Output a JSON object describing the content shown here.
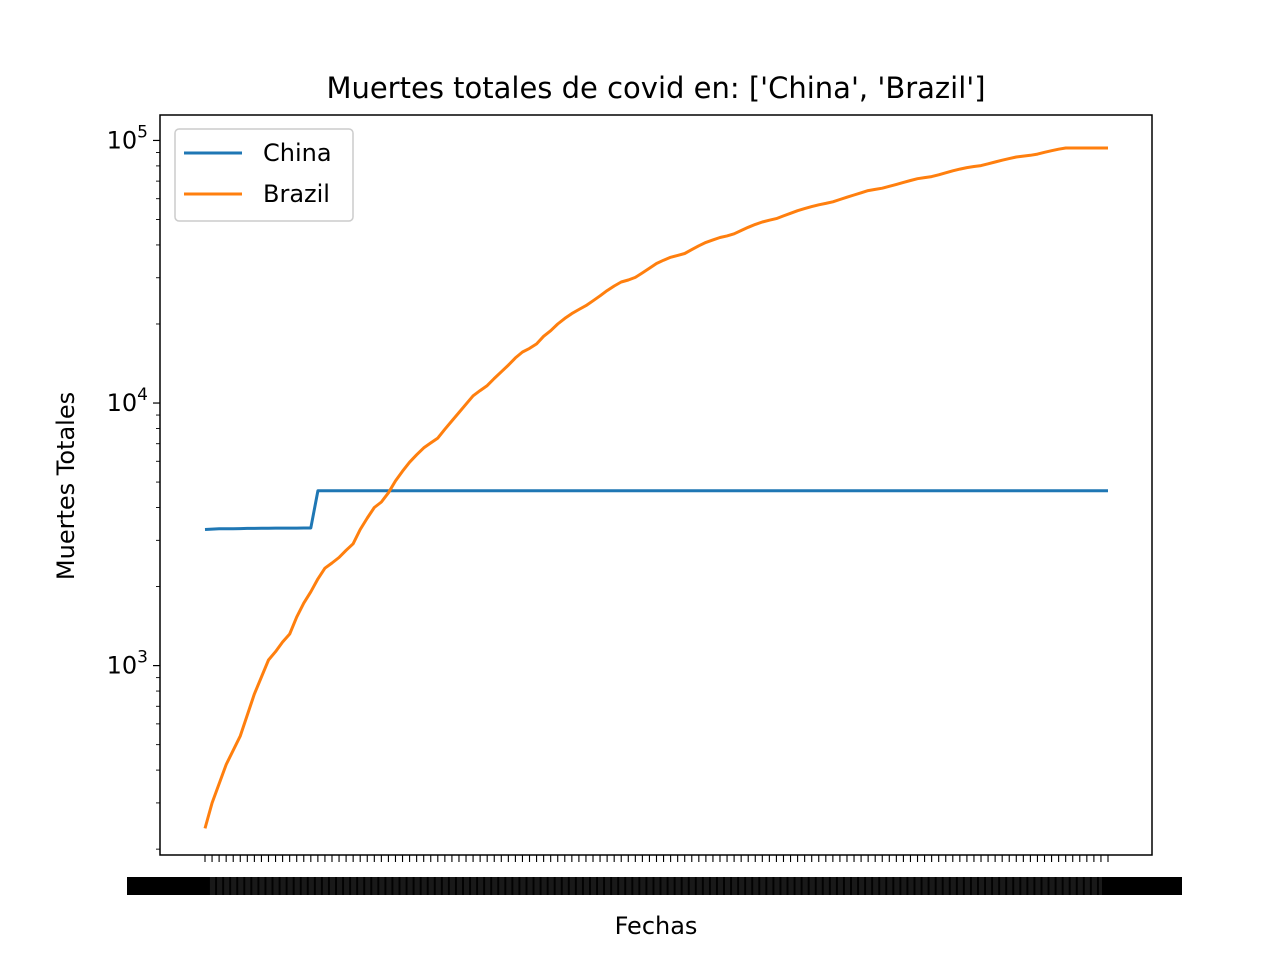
{
  "chart_data": {
    "type": "line",
    "title": "Muertes totales de covid en: ['China', 'Brazil']",
    "xlabel": "Fechas",
    "ylabel": "Muertes Totales",
    "yscale": "log",
    "ylim": [
      190,
      125000
    ],
    "yticks": [
      {
        "value": 1000,
        "base": "10",
        "exp": "3"
      },
      {
        "value": 10000,
        "base": "10",
        "exp": "4"
      },
      {
        "value": 100000,
        "base": "10",
        "exp": "5"
      }
    ],
    "x_tick_count": 128,
    "x_tick_labels_note": "overlapping date labels, unreadable",
    "legend": "top-left",
    "grid": false,
    "series": [
      {
        "name": "China",
        "color": "#1f77b4",
        "points": [
          [
            0,
            3300
          ],
          [
            1,
            3310
          ],
          [
            2,
            3320
          ],
          [
            3,
            3320
          ],
          [
            4,
            3320
          ],
          [
            5,
            3325
          ],
          [
            6,
            3330
          ],
          [
            7,
            3330
          ],
          [
            8,
            3335
          ],
          [
            9,
            3335
          ],
          [
            10,
            3340
          ],
          [
            11,
            3340
          ],
          [
            12,
            3340
          ],
          [
            13,
            3340
          ],
          [
            14,
            3342
          ],
          [
            15,
            3342
          ],
          [
            16,
            4632
          ],
          [
            128,
            4634
          ]
        ]
      },
      {
        "name": "Brazil",
        "color": "#ff7f0e",
        "points": [
          [
            0,
            240
          ],
          [
            1,
            300
          ],
          [
            3,
            420
          ],
          [
            5,
            540
          ],
          [
            7,
            780
          ],
          [
            9,
            1050
          ],
          [
            10,
            1130
          ],
          [
            11,
            1230
          ],
          [
            12,
            1320
          ],
          [
            13,
            1530
          ],
          [
            14,
            1730
          ],
          [
            15,
            1910
          ],
          [
            16,
            2140
          ],
          [
            17,
            2350
          ],
          [
            18,
            2460
          ],
          [
            19,
            2580
          ],
          [
            20,
            2750
          ],
          [
            21,
            2910
          ],
          [
            22,
            3300
          ],
          [
            23,
            3650
          ],
          [
            24,
            4000
          ],
          [
            25,
            4200
          ],
          [
            26,
            4550
          ],
          [
            27,
            5050
          ],
          [
            28,
            5500
          ],
          [
            29,
            5950
          ],
          [
            30,
            6350
          ],
          [
            31,
            6750
          ],
          [
            32,
            7050
          ],
          [
            33,
            7350
          ],
          [
            34,
            7950
          ],
          [
            35,
            8550
          ],
          [
            36,
            9200
          ],
          [
            37,
            9900
          ],
          [
            38,
            10650
          ],
          [
            39,
            11150
          ],
          [
            40,
            11650
          ],
          [
            41,
            12400
          ],
          [
            42,
            13150
          ],
          [
            43,
            13950
          ],
          [
            44,
            14850
          ],
          [
            45,
            15650
          ],
          [
            46,
            16150
          ],
          [
            47,
            16800
          ],
          [
            48,
            17950
          ],
          [
            49,
            18850
          ],
          [
            50,
            20000
          ],
          [
            51,
            21000
          ],
          [
            52,
            21900
          ],
          [
            53,
            22700
          ],
          [
            54,
            23500
          ],
          [
            55,
            24500
          ],
          [
            56,
            25600
          ],
          [
            57,
            26800
          ],
          [
            58,
            27900
          ],
          [
            59,
            28900
          ],
          [
            60,
            29400
          ],
          [
            61,
            30100
          ],
          [
            62,
            31300
          ],
          [
            63,
            32600
          ],
          [
            64,
            34000
          ],
          [
            65,
            35000
          ],
          [
            66,
            35900
          ],
          [
            67,
            36500
          ],
          [
            68,
            37100
          ],
          [
            69,
            38400
          ],
          [
            70,
            39700
          ],
          [
            71,
            40900
          ],
          [
            72,
            41800
          ],
          [
            73,
            42700
          ],
          [
            74,
            43300
          ],
          [
            75,
            44100
          ],
          [
            76,
            45400
          ],
          [
            77,
            46700
          ],
          [
            78,
            47900
          ],
          [
            79,
            48900
          ],
          [
            80,
            49700
          ],
          [
            81,
            50400
          ],
          [
            82,
            51600
          ],
          [
            83,
            52800
          ],
          [
            84,
            54000
          ],
          [
            85,
            55000
          ],
          [
            86,
            56000
          ],
          [
            87,
            56900
          ],
          [
            88,
            57600
          ],
          [
            89,
            58400
          ],
          [
            90,
            59600
          ],
          [
            91,
            60800
          ],
          [
            92,
            62000
          ],
          [
            93,
            63200
          ],
          [
            94,
            64400
          ],
          [
            95,
            65100
          ],
          [
            96,
            65800
          ],
          [
            97,
            66900
          ],
          [
            98,
            68000
          ],
          [
            99,
            69200
          ],
          [
            100,
            70400
          ],
          [
            101,
            71500
          ],
          [
            102,
            72200
          ],
          [
            103,
            72800
          ],
          [
            104,
            74000
          ],
          [
            105,
            75300
          ],
          [
            106,
            76600
          ],
          [
            107,
            77800
          ],
          [
            108,
            78800
          ],
          [
            109,
            79600
          ],
          [
            110,
            80200
          ],
          [
            111,
            81500
          ],
          [
            112,
            82800
          ],
          [
            113,
            84100
          ],
          [
            114,
            85300
          ],
          [
            115,
            86500
          ],
          [
            116,
            87200
          ],
          [
            117,
            87800
          ],
          [
            118,
            88700
          ],
          [
            119,
            90100
          ],
          [
            120,
            91400
          ],
          [
            121,
            92600
          ],
          [
            122,
            93600
          ],
          [
            128,
            93600
          ]
        ]
      }
    ]
  }
}
